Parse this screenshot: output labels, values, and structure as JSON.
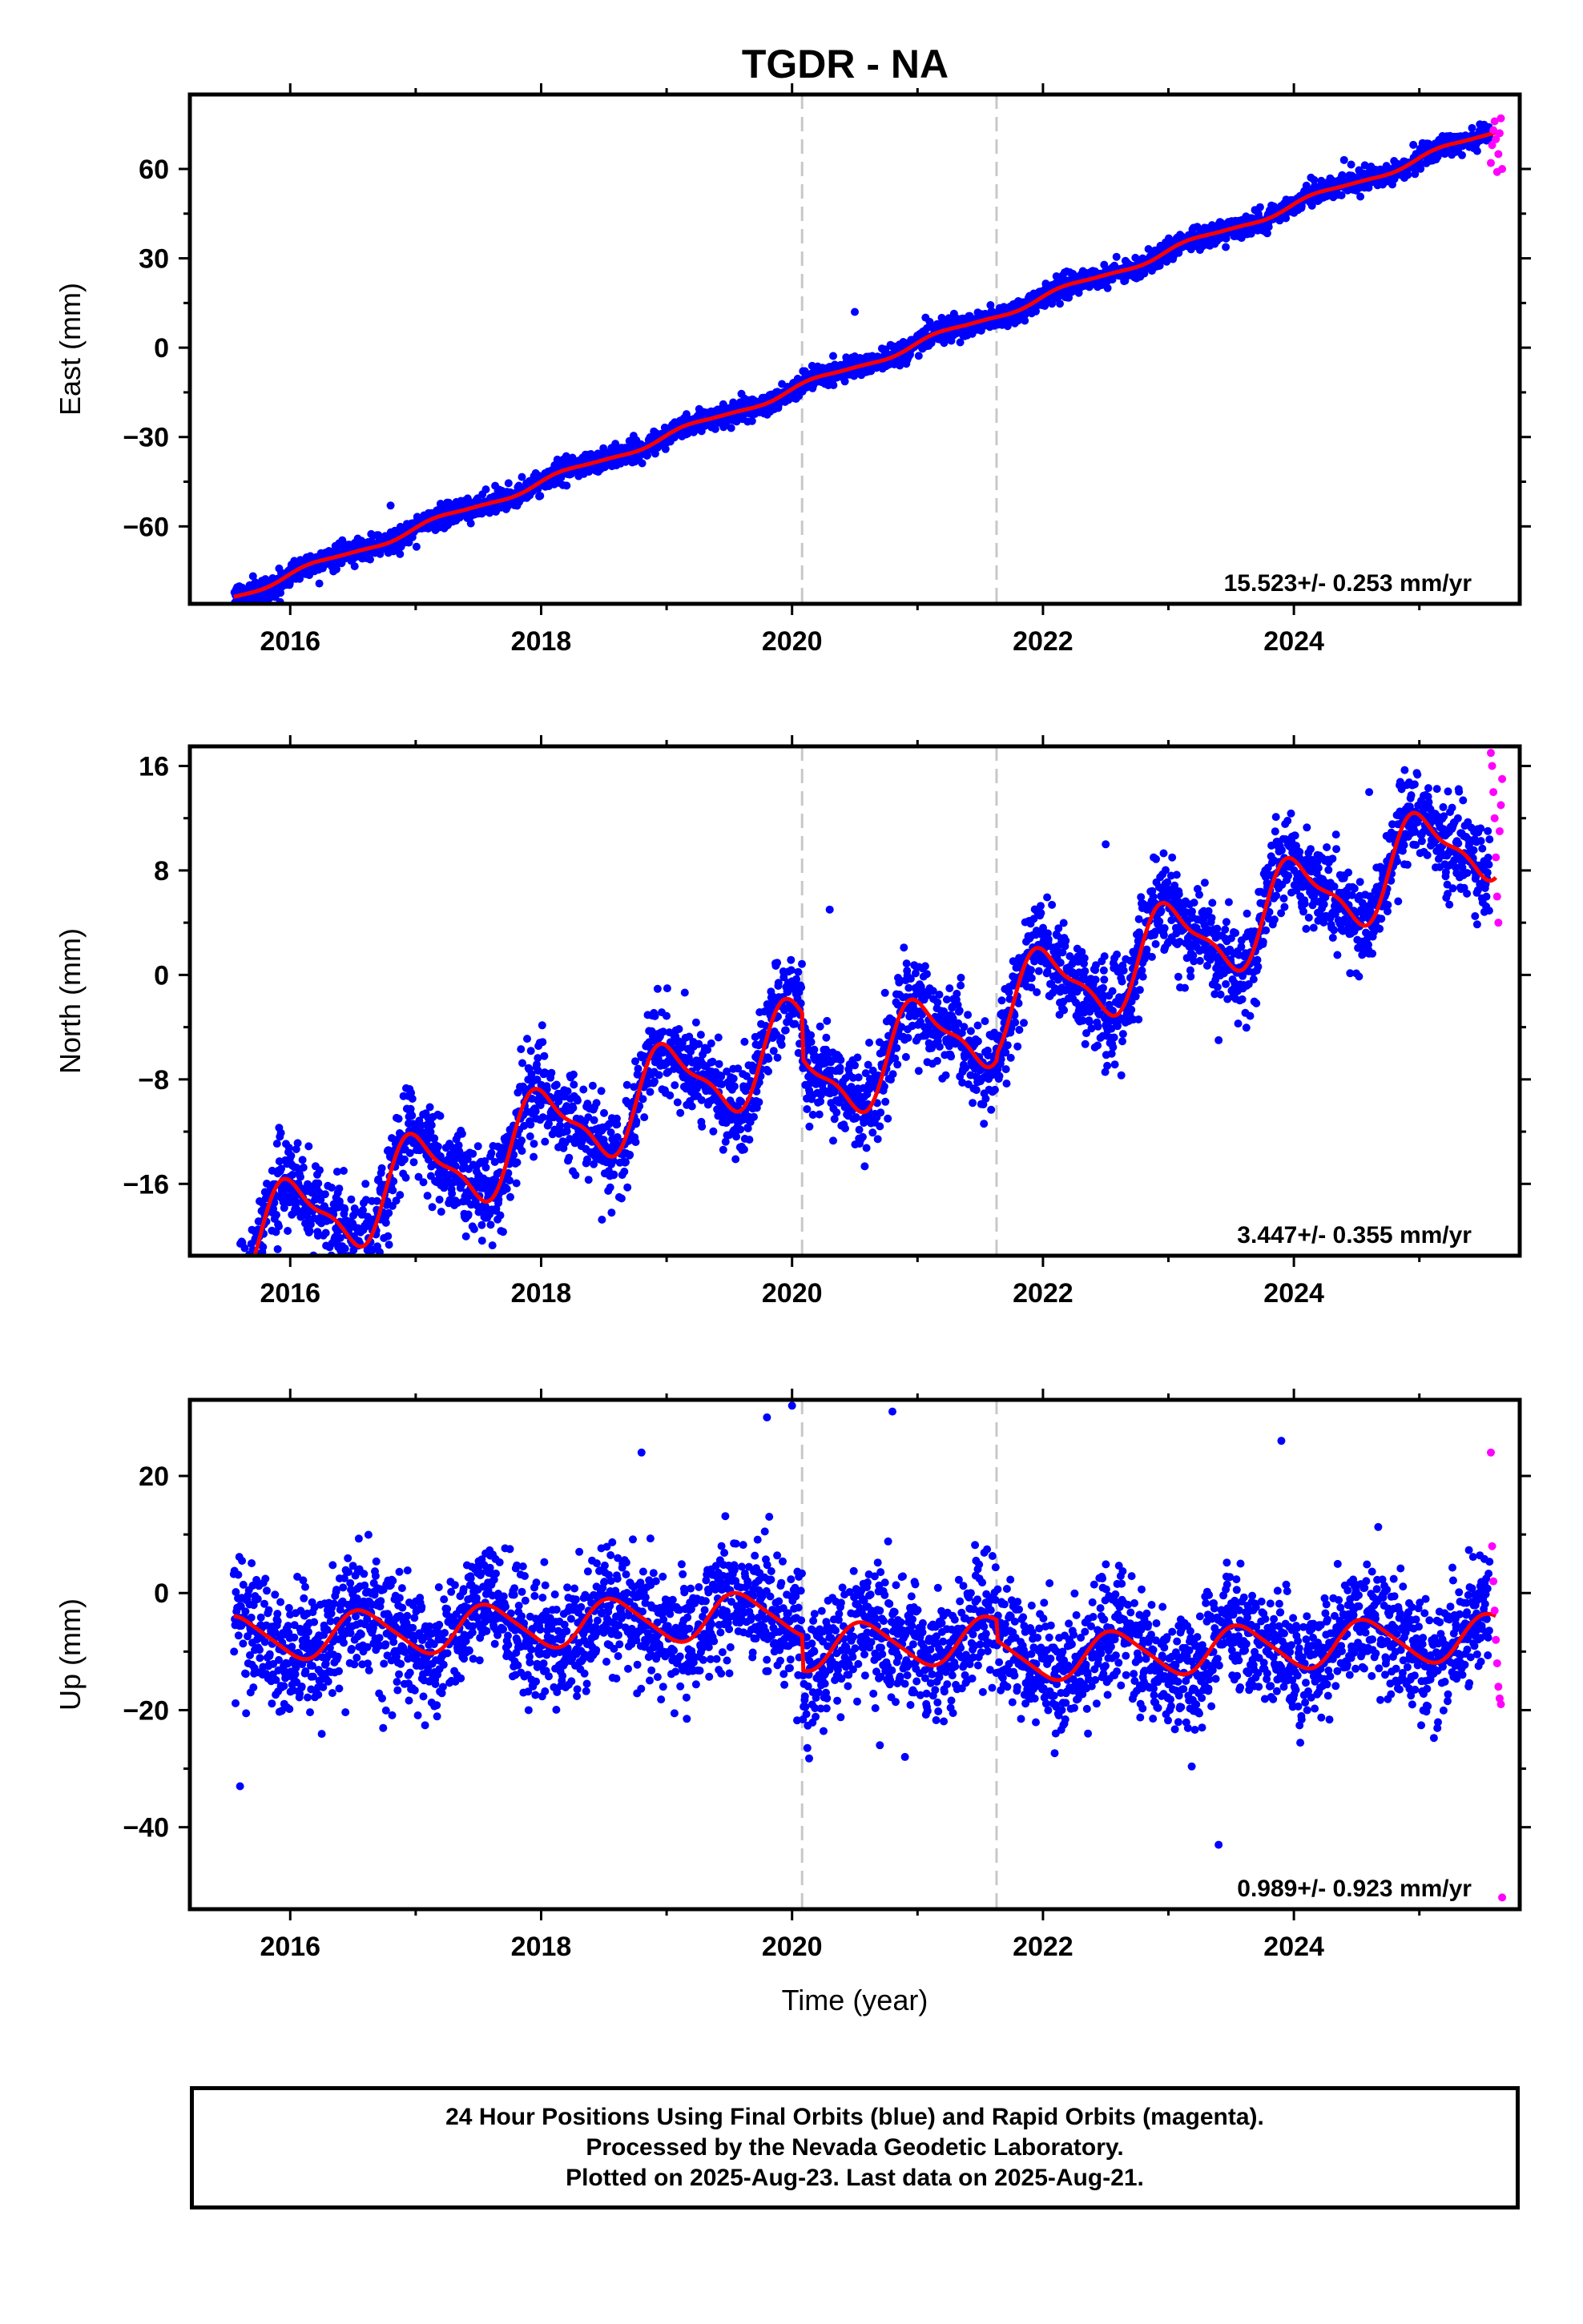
{
  "chart_data": {
    "type": "scatter",
    "title": "TGDR - NA",
    "xlabel": "Time (year)",
    "xlim": [
      2015.2,
      2025.8
    ],
    "xticks": [
      2016,
      2018,
      2020,
      2022,
      2024
    ],
    "vlines": [
      2020.08,
      2021.63
    ],
    "colors": {
      "final": "#0000ff",
      "rapid": "#ff00ff",
      "model": "#ff0000",
      "vline": "#c8c8c8"
    },
    "panels": [
      {
        "name": "east",
        "ylabel": "East (mm)",
        "ylim": [
          -86,
          85
        ],
        "yticks": [
          -60,
          -30,
          0,
          30,
          60
        ],
        "yticklabels": [
          "−60",
          "−30",
          "0",
          "30",
          "60"
        ],
        "rate_label": "15.523+/- 0.253 mm/yr",
        "rate": 15.523,
        "intercept": -6.5,
        "annual_amp": 1.2,
        "semi_amp": 0.3,
        "annual_phase": 0.2,
        "steps": [],
        "noise": 1.8,
        "outliers": [
          [
            2016.8,
            -53
          ],
          [
            2020.5,
            12
          ],
          [
            2024.4,
            63
          ]
        ],
        "rapid": [
          [
            2025.57,
            62
          ],
          [
            2025.58,
            68
          ],
          [
            2025.59,
            73
          ],
          [
            2025.6,
            76
          ],
          [
            2025.61,
            70
          ],
          [
            2025.62,
            59
          ],
          [
            2025.63,
            65
          ],
          [
            2025.64,
            72
          ],
          [
            2025.65,
            77
          ],
          [
            2025.66,
            60
          ]
        ]
      },
      {
        "name": "north",
        "ylabel": "North (mm)",
        "ylim": [
          -21.5,
          17.5
        ],
        "yticks": [
          -16,
          -8,
          0,
          8,
          16
        ],
        "yticklabels": [
          "−16",
          "−8",
          "0",
          "8",
          "16"
        ],
        "rate_label": "3.447+/- 0.355 mm/yr",
        "rate": 3.447,
        "intercept": -3.6,
        "annual_amp": 3.2,
        "semi_amp": 1.0,
        "annual_phase": 1.5,
        "steps": [
          [
            2020.08,
            -3.5
          ],
          [
            2021.63,
            0.5
          ]
        ],
        "noise": 1.7,
        "outliers": [
          [
            2015.9,
            -21
          ],
          [
            2016.6,
            -16
          ],
          [
            2023.4,
            -5
          ],
          [
            2020.3,
            5
          ],
          [
            2022.5,
            10
          ],
          [
            2024.6,
            14
          ]
        ],
        "rapid": [
          [
            2025.57,
            17
          ],
          [
            2025.58,
            16
          ],
          [
            2025.59,
            14
          ],
          [
            2025.6,
            12
          ],
          [
            2025.61,
            9
          ],
          [
            2025.62,
            6
          ],
          [
            2025.63,
            4
          ],
          [
            2025.64,
            11
          ],
          [
            2025.65,
            13
          ],
          [
            2025.66,
            15
          ]
        ]
      },
      {
        "name": "up",
        "ylabel": "Up (mm)",
        "ylim": [
          -54,
          33
        ],
        "yticks": [
          -40,
          -20,
          0,
          20
        ],
        "yticklabels": [
          "−40",
          "−20",
          "0",
          "20"
        ],
        "rate_label": "0.989+/- 0.923 mm/yr",
        "rate": 0.989,
        "intercept": -3.0,
        "annual_amp": 3.8,
        "semi_amp": 0.6,
        "annual_phase": 4.2,
        "steps": [
          [
            2020.08,
            -6.0
          ],
          [
            2021.63,
            -3.5
          ]
        ],
        "noise": 5.2,
        "outliers": [
          [
            2015.6,
            -33
          ],
          [
            2023.4,
            -43
          ],
          [
            2019.8,
            30
          ],
          [
            2020.0,
            32
          ],
          [
            2020.8,
            31
          ],
          [
            2020.7,
            -26
          ],
          [
            2020.9,
            -28
          ],
          [
            2023.9,
            26
          ],
          [
            2017.9,
            -20
          ],
          [
            2018.8,
            24
          ]
        ],
        "rapid": [
          [
            2025.57,
            24
          ],
          [
            2025.58,
            8
          ],
          [
            2025.59,
            2
          ],
          [
            2025.6,
            -3
          ],
          [
            2025.61,
            -8
          ],
          [
            2025.62,
            -12
          ],
          [
            2025.63,
            -16
          ],
          [
            2025.64,
            -18
          ],
          [
            2025.65,
            -19
          ],
          [
            2025.66,
            -52
          ]
        ]
      }
    ]
  },
  "footer": {
    "lines": [
      "24 Hour Positions Using Final Orbits (blue) and Rapid Orbits (magenta).",
      "Processed by the Nevada Geodetic Laboratory.",
      "Plotted on 2025-Aug-23. Last data on 2025-Aug-21."
    ]
  }
}
